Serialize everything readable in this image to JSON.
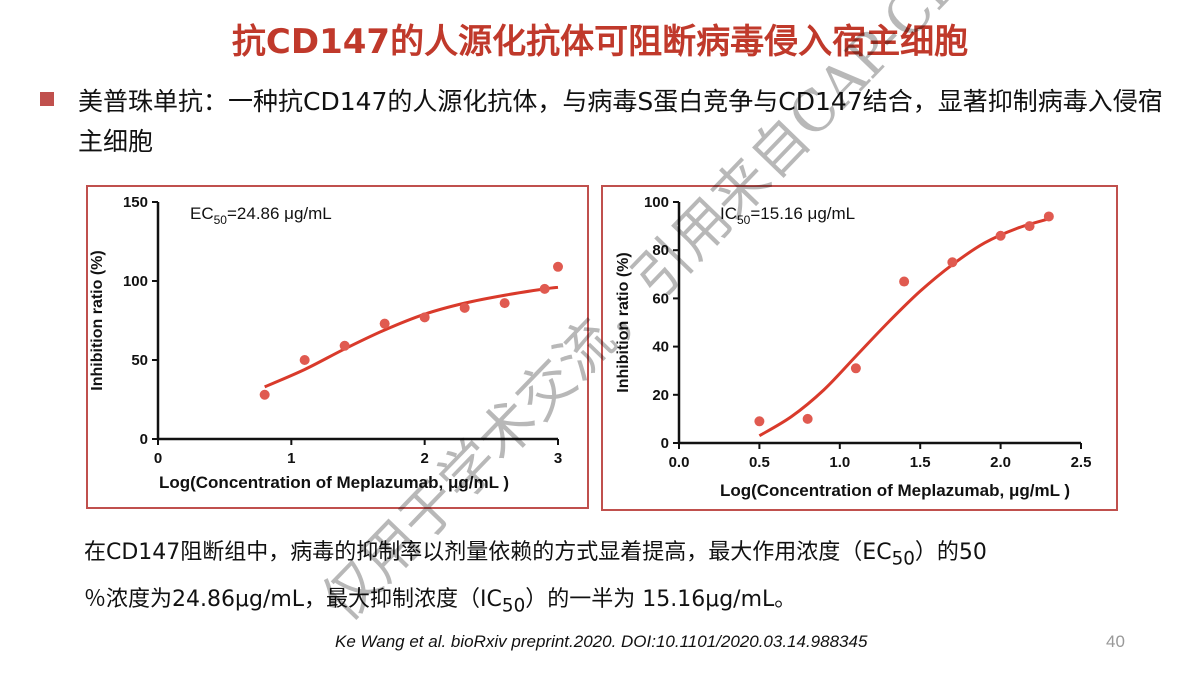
{
  "title": "抗CD147的人源化抗体可阻断病毒侵入宿主细胞",
  "bullet": "美普珠单抗：一种抗CD147的人源化抗体，与病毒S蛋白竞争与CD147结合，显著抑制病毒入侵宿主细胞",
  "body_text_1": "在CD147阻断组中，病毒的抑制率以剂量依赖的方式显着提高，最大作用浓度（EC",
  "body_sub_1": "50",
  "body_text_2": "）的50",
  "body_text_3": "％浓度为24.86μg/mL，最大抑制浓度（IC",
  "body_sub_2": "50",
  "body_text_4": "）的一半为 15.16μg/mL。",
  "citation": "Ke Wang et al. bioRxiv preprint.2020. DOI:10.1101/2020.03.14.988345",
  "page_number": "40",
  "watermark": "仅用于学术交流，引用来自CAP-China研究平台",
  "chart_data": [
    {
      "type": "scatter",
      "annotation_prefix": "EC",
      "annotation_sub": "50",
      "annotation_suffix": "=24.86 μg/mL",
      "xlabel": "Log(Concentration of Meplazumab, μg/mL )",
      "ylabel": "Inhibition ratio (%)",
      "xlim": [
        0,
        3
      ],
      "ylim": [
        0,
        150
      ],
      "xticks": [
        "0",
        "1",
        "2",
        "3"
      ],
      "yticks": [
        "0",
        "50",
        "100",
        "150"
      ],
      "points": [
        [
          0.8,
          28
        ],
        [
          1.1,
          50
        ],
        [
          1.4,
          59
        ],
        [
          1.7,
          73
        ],
        [
          2.0,
          77
        ],
        [
          2.3,
          83
        ],
        [
          2.6,
          86
        ],
        [
          2.9,
          95
        ],
        [
          3.0,
          109
        ]
      ],
      "fit": [
        [
          0.8,
          33
        ],
        [
          1.1,
          44
        ],
        [
          1.4,
          57
        ],
        [
          1.7,
          69
        ],
        [
          2.0,
          79
        ],
        [
          2.3,
          86
        ],
        [
          2.6,
          91
        ],
        [
          2.9,
          95
        ],
        [
          3.0,
          96
        ]
      ],
      "point_color": "#e05a50",
      "line_color": "#d93a2b"
    },
    {
      "type": "scatter",
      "annotation_prefix": "IC",
      "annotation_sub": "50",
      "annotation_suffix": "=15.16 μg/mL",
      "xlabel": "Log(Concentration of Meplazumab, μg/mL )",
      "ylabel": "Inhibition ratio (%)",
      "xlim": [
        0,
        2.5
      ],
      "ylim": [
        0,
        100
      ],
      "xticks": [
        "0.0",
        "0.5",
        "1.0",
        "1.5",
        "2.0",
        "2.5"
      ],
      "yticks": [
        "0",
        "20",
        "40",
        "60",
        "80",
        "100"
      ],
      "points": [
        [
          0.5,
          9
        ],
        [
          0.8,
          10
        ],
        [
          1.1,
          31
        ],
        [
          1.4,
          67
        ],
        [
          1.7,
          75
        ],
        [
          2.0,
          86
        ],
        [
          2.18,
          90
        ],
        [
          2.3,
          94
        ]
      ],
      "fit": [
        [
          0.5,
          3
        ],
        [
          0.7,
          11
        ],
        [
          0.9,
          22
        ],
        [
          1.1,
          36
        ],
        [
          1.3,
          50
        ],
        [
          1.5,
          63
        ],
        [
          1.7,
          74
        ],
        [
          1.9,
          83
        ],
        [
          2.1,
          89
        ],
        [
          2.3,
          93
        ]
      ],
      "point_color": "#e05a50",
      "line_color": "#d93a2b"
    }
  ]
}
